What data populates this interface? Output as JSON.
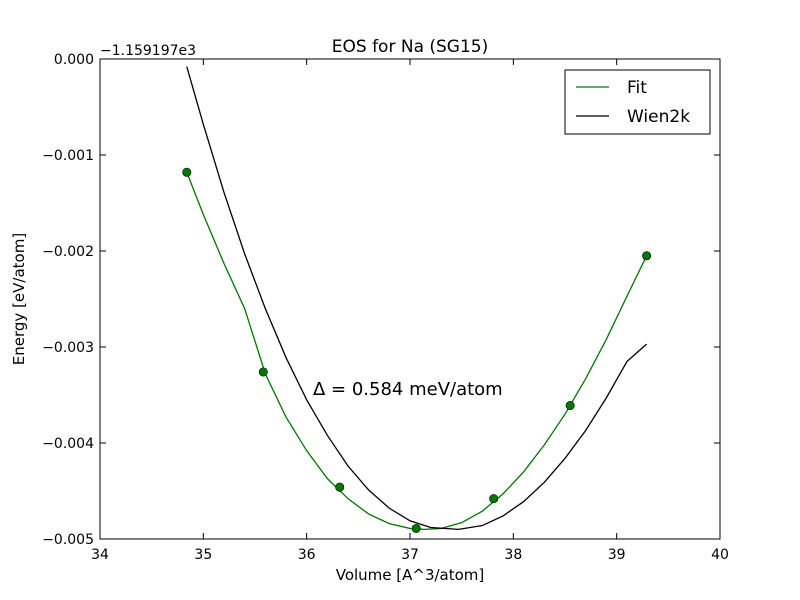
{
  "chart_data": {
    "type": "scatter",
    "title": "EOS for Na (SG15)",
    "xlabel": "Volume [A^3/atom]",
    "ylabel": "Energy [eV/atom]",
    "offset_text": "−1.159197e3",
    "xlim": [
      34,
      40
    ],
    "ylim": [
      -0.005,
      0.0
    ],
    "xticks": [
      34,
      35,
      36,
      37,
      38,
      39,
      40
    ],
    "yticks": [
      0.0,
      -0.001,
      -0.002,
      -0.003,
      -0.004,
      -0.005
    ],
    "xtick_labels": [
      "34",
      "35",
      "36",
      "37",
      "38",
      "39",
      "40"
    ],
    "ytick_labels": [
      "0.000",
      "−0.001",
      "−0.002",
      "−0.003",
      "−0.004",
      "−0.005"
    ],
    "annotation": "Δ = 0.584 meV/atom",
    "legend_position": "top-right",
    "grid": false,
    "points": {
      "x": [
        34.84,
        35.58,
        36.32,
        37.06,
        37.81,
        38.55,
        39.29
      ],
      "y": [
        -0.00118,
        -0.00326,
        -0.00446,
        -0.00489,
        -0.00458,
        -0.00361,
        -0.00205
      ],
      "color": "#007700"
    },
    "series": [
      {
        "name": "Fit",
        "color": "#007700",
        "x": [
          34.84,
          35.0,
          35.2,
          35.4,
          35.6,
          35.8,
          36.0,
          36.2,
          36.4,
          36.6,
          36.8,
          37.0,
          37.14,
          37.3,
          37.5,
          37.7,
          37.9,
          38.1,
          38.3,
          38.5,
          38.7,
          38.9,
          39.1,
          39.29
        ],
        "y": [
          -0.00118,
          -0.00162,
          -0.00213,
          -0.0026,
          -0.00328,
          -0.00373,
          -0.00408,
          -0.00437,
          -0.00458,
          -0.00474,
          -0.00484,
          -0.00489,
          -0.0049,
          -0.00489,
          -0.00483,
          -0.00471,
          -0.00453,
          -0.0043,
          -0.00402,
          -0.0037,
          -0.00333,
          -0.00292,
          -0.00247,
          -0.00205
        ]
      },
      {
        "name": "Wien2k",
        "color": "#000000",
        "x": [
          34.84,
          35.0,
          35.2,
          35.4,
          35.6,
          35.8,
          36.0,
          36.2,
          36.4,
          36.6,
          36.8,
          37.0,
          37.2,
          37.47,
          37.7,
          37.9,
          38.1,
          38.3,
          38.5,
          38.7,
          38.9,
          39.1,
          39.29
        ],
        "y": [
          -8e-05,
          -0.00068,
          -0.00139,
          -0.00203,
          -0.0026,
          -0.00311,
          -0.00355,
          -0.00392,
          -0.00424,
          -0.00449,
          -0.00468,
          -0.00481,
          -0.00488,
          -0.0049,
          -0.00486,
          -0.00476,
          -0.00461,
          -0.00441,
          -0.00416,
          -0.00387,
          -0.00353,
          -0.00315,
          -0.00297
        ]
      }
    ]
  }
}
